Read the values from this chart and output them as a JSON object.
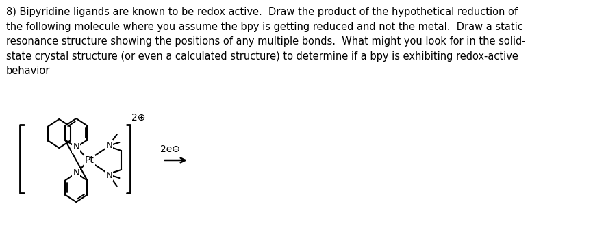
{
  "background_color": "#ffffff",
  "text_question": "8) Bipyridine ligands are known to be redox active.  Draw the product of the hypothetical reduction of\nthe following molecule where you assume the bpy is getting reduced and not the metal.  Draw a static\nresonance structure showing the positions of any multiple bonds.  What might you look for in the solid-\nstate crystal structure (or even a calculated structure) to determine if a bpy is exhibiting redox-active\nbehavior",
  "text_fontsize": 10.5,
  "fig_width": 8.66,
  "fig_height": 3.52,
  "charge_label": "2⊕",
  "arrow_label": "2e⊖",
  "pt_label": "Pt",
  "n_label": "N",
  "bracket_lw": 2.0,
  "bond_lw": 1.5,
  "text_color": "#000000"
}
